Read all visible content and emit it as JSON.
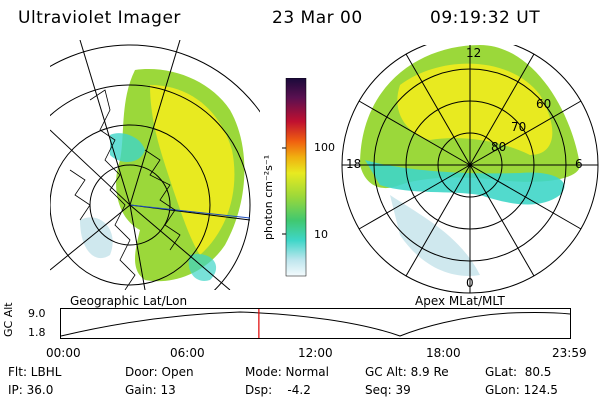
{
  "header": {
    "instrument": "Ultraviolet Imager",
    "date": "23 Mar 00",
    "time": "09:19:32 UT"
  },
  "colorbar": {
    "unit_label": "photon cm⁻²s⁻¹",
    "ticks": [
      "100",
      "10"
    ]
  },
  "panels": {
    "geo_label": "Geographic Lat/Lon",
    "apex_label": "Apex MLat/MLT",
    "mlt_labels": {
      "top": "12",
      "left": "18",
      "right": "6",
      "bottom": "0"
    },
    "lat_labels": [
      "60",
      "70",
      "80"
    ]
  },
  "timeline": {
    "ylabel": "GC Alt",
    "yticks": [
      "9.0",
      "1.8"
    ],
    "xticks": [
      "00:00",
      "06:00",
      "12:00",
      "18:00",
      "23:59"
    ],
    "current_time_hours": 9.33
  },
  "info": {
    "flt": "Flt: LBHL",
    "door": "Door: Open",
    "mode": "Mode: Normal",
    "gcalt": "GC Alt: 8.9 Re",
    "glat": "GLat:  80.5",
    "ip": "IP: 36.0",
    "gain": "Gain: 13",
    "dsp": "Dsp:    -4.2",
    "seq": "Seq: 39",
    "glon": "GLon: 124.5"
  },
  "colors": {
    "bright": "#e8ea20",
    "mid": "#9bd83a",
    "dim": "#3fd6c8",
    "faint": "#cfe8ee",
    "marker": "#e00000"
  }
}
